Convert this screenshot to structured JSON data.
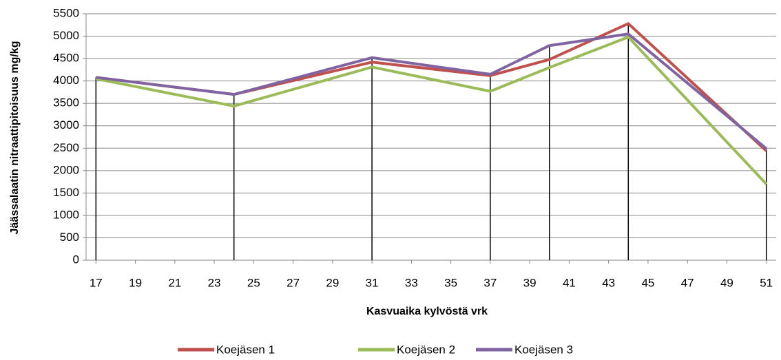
{
  "chart_data": {
    "type": "line",
    "x_label": "Kasvuaika kylvöstä vrk",
    "y_label": "Jäässalaatin nitraattipitoisuus mg/kg",
    "x": [
      17,
      24,
      31,
      37,
      40,
      44,
      51
    ],
    "series": [
      {
        "name": "Koejäsen 1",
        "color": "#c0504d",
        "values": [
          4080,
          3700,
          4420,
          4120,
          4480,
          5280,
          2440
        ]
      },
      {
        "name": "Koejäsen 2",
        "color": "#9bbb59",
        "values": [
          4050,
          3440,
          4310,
          3770,
          4300,
          4980,
          1700
        ]
      },
      {
        "name": "Koejäsen 3",
        "color": "#8064a2",
        "values": [
          4080,
          3700,
          4520,
          4150,
          4790,
          5050,
          2490
        ]
      }
    ],
    "xlim": [
      16.5,
      51.5
    ],
    "xticks": [
      17,
      19,
      21,
      23,
      25,
      27,
      29,
      31,
      33,
      35,
      37,
      39,
      41,
      43,
      45,
      47,
      49,
      51
    ],
    "ylim": [
      0,
      5500
    ],
    "yticks": [
      0,
      500,
      1000,
      1500,
      2000,
      2500,
      3000,
      3500,
      4000,
      4500,
      5000,
      5500
    ],
    "grid": true,
    "legend": "bottom"
  }
}
